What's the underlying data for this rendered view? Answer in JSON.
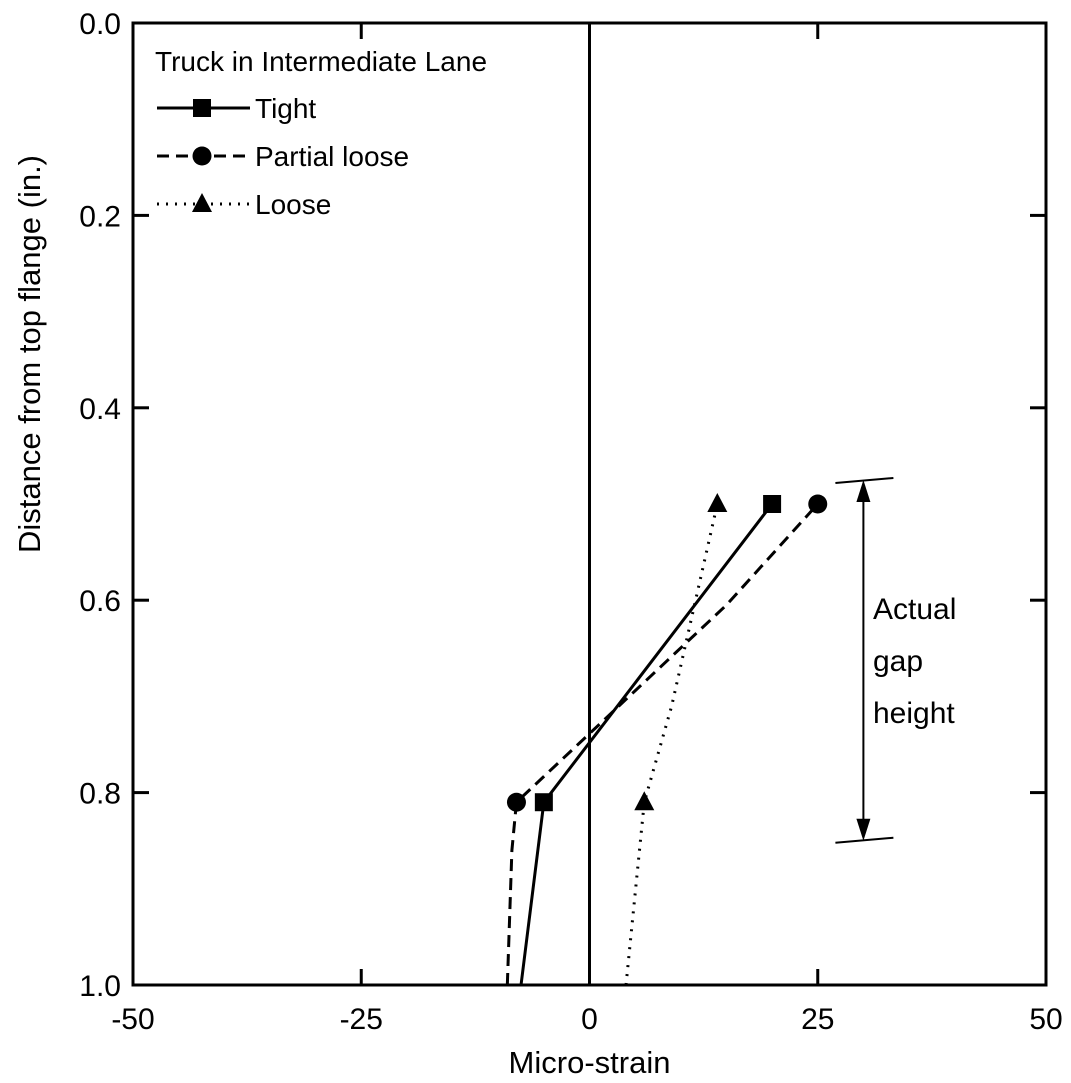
{
  "chart_data": {
    "type": "line",
    "title": "",
    "xlabel": "Micro-strain",
    "ylabel": "Distance from top flange (in.)",
    "xlim": [
      -50,
      50
    ],
    "ylim": [
      0.0,
      1.0
    ],
    "y_inverted": true,
    "x_ticks": [
      -50,
      -25,
      0,
      25,
      50
    ],
    "x_tick_labels": [
      "-50",
      "-25",
      "0",
      "25",
      "50"
    ],
    "y_ticks": [
      0.0,
      0.2,
      0.4,
      0.6,
      0.8,
      1.0
    ],
    "y_tick_labels": [
      "0.0",
      "0.2",
      "0.4",
      "0.6",
      "0.8",
      "1.0"
    ],
    "grid": false,
    "legend_title": "Truck in Intermediate Lane",
    "legend_position": "top-left",
    "series": [
      {
        "name": "Tight",
        "line_style": "solid",
        "marker": "square",
        "line_points": [
          [
            -7.5,
            1.0
          ],
          [
            -5,
            0.81
          ],
          [
            20,
            0.5
          ]
        ],
        "markers": [
          [
            -5,
            0.81
          ],
          [
            20,
            0.5
          ]
        ]
      },
      {
        "name": "Partial loose",
        "line_style": "dashed",
        "marker": "circle",
        "line_points": [
          [
            -9,
            1.0
          ],
          [
            -8.5,
            0.86
          ],
          [
            -8,
            0.81
          ],
          [
            15,
            0.605
          ],
          [
            25,
            0.5
          ]
        ],
        "markers": [
          [
            -8,
            0.81
          ],
          [
            25,
            0.5
          ]
        ]
      },
      {
        "name": "Loose",
        "line_style": "dotted",
        "marker": "triangle",
        "line_points": [
          [
            4,
            1.0
          ],
          [
            6,
            0.81
          ],
          [
            9,
            0.71
          ],
          [
            14,
            0.5
          ]
        ],
        "markers": [
          [
            6,
            0.81
          ],
          [
            14,
            0.5
          ]
        ]
      }
    ],
    "annotation": {
      "text_lines": [
        "Actual",
        "gap",
        "height"
      ],
      "x": 30,
      "y_top": 0.475,
      "y_bottom": 0.85
    }
  }
}
